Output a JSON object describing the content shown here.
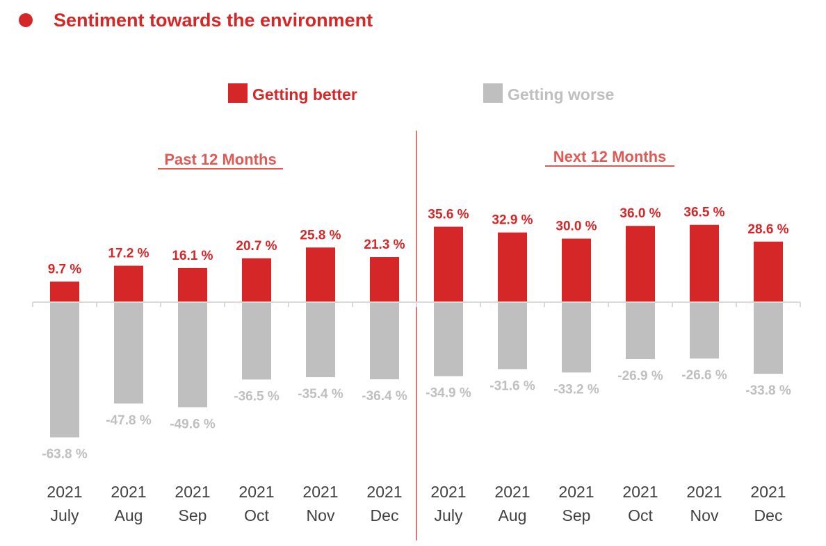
{
  "title": "Sentiment towards the environment",
  "colors": {
    "better": "#d62728",
    "worse": "#bfbfbf",
    "title": "#d62728",
    "section": "#e05a55",
    "divider": "#c0504d",
    "axis": "#d9d9d9",
    "tick_text": "#404040"
  },
  "legend": {
    "better": "Getting better",
    "worse": "Getting worse"
  },
  "sections": [
    {
      "label": "Past 12 Months"
    },
    {
      "label": "Next 12 Months"
    }
  ],
  "chart_data": {
    "type": "bar",
    "title": "Sentiment towards the environment",
    "categories": [
      {
        "year": "2021",
        "month": "July"
      },
      {
        "year": "2021",
        "month": "Aug"
      },
      {
        "year": "2021",
        "month": "Sep"
      },
      {
        "year": "2021",
        "month": "Oct"
      },
      {
        "year": "2021",
        "month": "Nov"
      },
      {
        "year": "2021",
        "month": "Dec"
      },
      {
        "year": "2021",
        "month": "July"
      },
      {
        "year": "2021",
        "month": "Aug"
      },
      {
        "year": "2021",
        "month": "Sep"
      },
      {
        "year": "2021",
        "month": "Oct"
      },
      {
        "year": "2021",
        "month": "Nov"
      },
      {
        "year": "2021",
        "month": "Dec"
      }
    ],
    "groups": [
      "Past 12 Months",
      "Past 12 Months",
      "Past 12 Months",
      "Past 12 Months",
      "Past 12 Months",
      "Past 12 Months",
      "Next 12 Months",
      "Next 12 Months",
      "Next 12 Months",
      "Next 12 Months",
      "Next 12 Months",
      "Next 12 Months"
    ],
    "series": [
      {
        "name": "Getting better",
        "values": [
          9.7,
          17.2,
          16.1,
          20.7,
          25.8,
          21.3,
          35.6,
          32.9,
          30.0,
          36.0,
          36.5,
          28.6
        ],
        "labels": [
          "9.7 %",
          "17.2 %",
          "16.1 %",
          "20.7 %",
          "25.8 %",
          "21.3 %",
          "35.6 %",
          "32.9 %",
          "30.0 %",
          "36.0 %",
          "36.5 %",
          "28.6 %"
        ]
      },
      {
        "name": "Getting worse",
        "values": [
          -63.8,
          -47.8,
          -49.6,
          -36.5,
          -35.4,
          -36.4,
          -34.9,
          -31.6,
          -33.2,
          -26.9,
          -26.6,
          -33.8
        ],
        "labels": [
          "-63.8 %",
          "-47.8 %",
          "-49.6 %",
          "-36.5 %",
          "-35.4 %",
          "-36.4 %",
          "-34.9 %",
          "-31.6 %",
          "-33.2 %",
          "-26.9 %",
          "-26.6 %",
          "-33.8 %"
        ]
      }
    ],
    "ylim": [
      -70,
      40
    ],
    "unit": "%",
    "legend_position": "top-center",
    "grid": false
  }
}
